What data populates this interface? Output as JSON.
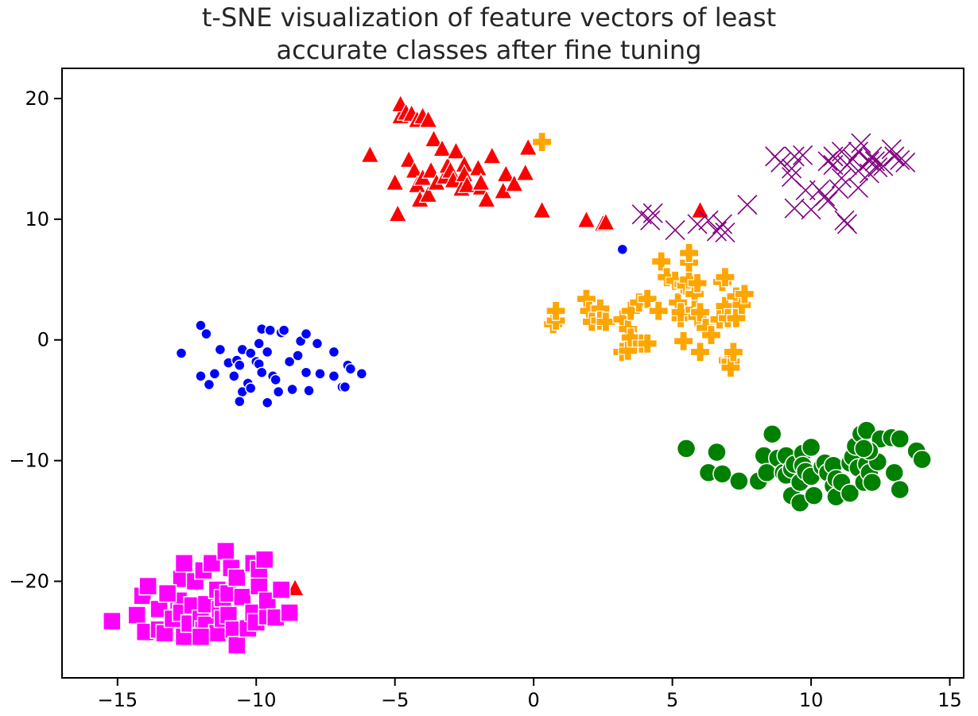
{
  "chart_data": {
    "type": "scatter",
    "title_lines": [
      "t-SNE visualization of feature vectors of least",
      "accurate classes after fine tuning"
    ],
    "xlabel": "",
    "ylabel": "",
    "xlim": [
      -17,
      15.5
    ],
    "ylim": [
      -28,
      22.5
    ],
    "xticks": [
      -15,
      -10,
      -5,
      0,
      5,
      10,
      15
    ],
    "yticks": [
      -20,
      -10,
      0,
      10,
      20
    ],
    "xtick_labels": [
      "−15",
      "−10",
      "−5",
      "0",
      "5",
      "10",
      "15"
    ],
    "ytick_labels": [
      "−20",
      "−10",
      "0",
      "10",
      "20"
    ],
    "grid": false,
    "series": [
      {
        "name": "class-circle-small",
        "marker": "circle-small",
        "color": "#0000ff",
        "points": [
          [
            -12.7,
            -1.1
          ],
          [
            -12.0,
            1.2
          ],
          [
            -11.8,
            0.5
          ],
          [
            -11.5,
            -2.8
          ],
          [
            -12.0,
            -3.0
          ],
          [
            -11.7,
            -3.7
          ],
          [
            -11.3,
            -0.8
          ],
          [
            -11.0,
            -1.9
          ],
          [
            -10.8,
            -3.0
          ],
          [
            -10.7,
            -1.7
          ],
          [
            -10.6,
            -2.1
          ],
          [
            -10.5,
            -4.3
          ],
          [
            -10.6,
            -5.1
          ],
          [
            -10.5,
            -0.8
          ],
          [
            -10.3,
            -3.6
          ],
          [
            -10.2,
            -4.0
          ],
          [
            -10.2,
            -1.1
          ],
          [
            -10.0,
            -1.8
          ],
          [
            -9.9,
            -2.0
          ],
          [
            -9.9,
            -0.3
          ],
          [
            -9.8,
            -2.7
          ],
          [
            -9.6,
            -1.0
          ],
          [
            -9.8,
            0.9
          ],
          [
            -9.5,
            0.8
          ],
          [
            -9.4,
            -3.0
          ],
          [
            -9.3,
            -3.3
          ],
          [
            -9.6,
            -5.2
          ],
          [
            -9.2,
            -4.3
          ],
          [
            -9.1,
            0.6
          ],
          [
            -9.0,
            0.8
          ],
          [
            -8.8,
            -1.8
          ],
          [
            -8.7,
            -4.1
          ],
          [
            -8.5,
            -1.3
          ],
          [
            -8.4,
            -0.1
          ],
          [
            -8.2,
            0.5
          ],
          [
            -8.2,
            -2.7
          ],
          [
            -8.1,
            -4.2
          ],
          [
            -7.8,
            -0.3
          ],
          [
            -7.7,
            -2.8
          ],
          [
            -7.2,
            -1.0
          ],
          [
            -7.2,
            -3.0
          ],
          [
            -6.9,
            -3.9
          ],
          [
            -6.8,
            -3.9
          ],
          [
            -6.7,
            -2.1
          ],
          [
            -6.6,
            -2.4
          ],
          [
            -6.2,
            -2.8
          ],
          [
            3.2,
            7.5
          ]
        ]
      },
      {
        "name": "class-triangle",
        "marker": "triangle",
        "color": "#ff0000",
        "points": [
          [
            -5.9,
            15.3
          ],
          [
            -5.0,
            13.0
          ],
          [
            -4.9,
            10.4
          ],
          [
            -4.8,
            18.5
          ],
          [
            -4.8,
            19.5
          ],
          [
            -4.6,
            18.8
          ],
          [
            -4.5,
            14.9
          ],
          [
            -4.4,
            18.7
          ],
          [
            -4.3,
            14.0
          ],
          [
            -4.2,
            12.8
          ],
          [
            -4.2,
            18.2
          ],
          [
            -4.1,
            11.6
          ],
          [
            -4.0,
            18.5
          ],
          [
            -4.0,
            13.4
          ],
          [
            -3.8,
            18.2
          ],
          [
            -3.8,
            12.0
          ],
          [
            -3.7,
            14.0
          ],
          [
            -3.6,
            16.6
          ],
          [
            -3.5,
            13.0
          ],
          [
            -3.3,
            15.8
          ],
          [
            -3.2,
            13.5
          ],
          [
            -3.1,
            14.4
          ],
          [
            -3.0,
            14.0
          ],
          [
            -2.9,
            13.2
          ],
          [
            -2.8,
            15.6
          ],
          [
            -2.6,
            12.5
          ],
          [
            -2.5,
            14.5
          ],
          [
            -2.5,
            13.7
          ],
          [
            -2.4,
            12.8
          ],
          [
            -2.0,
            14.2
          ],
          [
            -1.9,
            12.6
          ],
          [
            -1.9,
            13.0
          ],
          [
            -1.7,
            11.6
          ],
          [
            -1.5,
            15.2
          ],
          [
            -1.1,
            12.3
          ],
          [
            -1.0,
            13.7
          ],
          [
            -0.7,
            12.9
          ],
          [
            -0.3,
            13.8
          ],
          [
            -0.2,
            15.9
          ],
          [
            0.3,
            10.7
          ],
          [
            1.9,
            9.9
          ],
          [
            2.5,
            9.6
          ],
          [
            2.6,
            9.7
          ],
          [
            6.0,
            10.7
          ],
          [
            -8.6,
            -20.6
          ]
        ]
      },
      {
        "name": "class-cross",
        "marker": "cross",
        "color": "#800080",
        "points": [
          [
            3.9,
            10.4
          ],
          [
            4.2,
            9.9
          ],
          [
            4.3,
            10.5
          ],
          [
            5.1,
            9.1
          ],
          [
            5.9,
            9.6
          ],
          [
            6.3,
            9.9
          ],
          [
            6.6,
            9.0
          ],
          [
            6.9,
            8.9
          ],
          [
            6.8,
            9.6
          ],
          [
            7.7,
            11.2
          ],
          [
            8.7,
            15.2
          ],
          [
            8.9,
            14.7
          ],
          [
            9.3,
            14.2
          ],
          [
            9.3,
            13.5
          ],
          [
            9.4,
            15.2
          ],
          [
            9.7,
            15.3
          ],
          [
            9.8,
            12.4
          ],
          [
            9.4,
            10.9
          ],
          [
            10.0,
            10.8
          ],
          [
            10.3,
            12.4
          ],
          [
            10.5,
            11.9
          ],
          [
            10.6,
            11.5
          ],
          [
            10.8,
            15.2
          ],
          [
            10.8,
            14.5
          ],
          [
            11.0,
            12.5
          ],
          [
            11.1,
            15.6
          ],
          [
            11.1,
            13.4
          ],
          [
            11.2,
            9.9
          ],
          [
            11.3,
            9.6
          ],
          [
            11.3,
            14.5
          ],
          [
            11.5,
            15.0
          ],
          [
            11.7,
            15.6
          ],
          [
            11.7,
            14.0
          ],
          [
            11.7,
            12.6
          ],
          [
            11.8,
            16.3
          ],
          [
            12.1,
            14.8
          ],
          [
            12.1,
            13.8
          ],
          [
            12.3,
            14.8
          ],
          [
            12.4,
            14.3
          ],
          [
            12.6,
            14.4
          ],
          [
            12.9,
            15.8
          ],
          [
            13.0,
            15.2
          ],
          [
            13.2,
            14.9
          ],
          [
            13.4,
            14.7
          ],
          [
            12.2,
            15.2
          ],
          [
            10.6,
            14.8
          ]
        ]
      },
      {
        "name": "class-plus",
        "marker": "plus",
        "color": "#ffa500",
        "points": [
          [
            0.3,
            16.4
          ],
          [
            0.7,
            1.3
          ],
          [
            0.8,
            1.6
          ],
          [
            0.8,
            2.4
          ],
          [
            1.9,
            3.4
          ],
          [
            2.0,
            2.4
          ],
          [
            2.1,
            1.5
          ],
          [
            2.4,
            2.6
          ],
          [
            2.4,
            1.6
          ],
          [
            2.6,
            1.5
          ],
          [
            3.2,
            1.7
          ],
          [
            3.2,
            -1.0
          ],
          [
            3.4,
            0.9
          ],
          [
            3.4,
            -0.9
          ],
          [
            3.5,
            0.2
          ],
          [
            3.5,
            2.4
          ],
          [
            3.8,
            3.1
          ],
          [
            3.9,
            -0.3
          ],
          [
            4.1,
            -0.3
          ],
          [
            4.1,
            3.4
          ],
          [
            4.5,
            2.4
          ],
          [
            4.6,
            6.5
          ],
          [
            4.8,
            5.2
          ],
          [
            5.1,
            4.9
          ],
          [
            5.2,
            3.1
          ],
          [
            5.3,
            1.8
          ],
          [
            5.3,
            2.3
          ],
          [
            5.4,
            4.6
          ],
          [
            5.4,
            -0.1
          ],
          [
            5.5,
            4.5
          ],
          [
            5.6,
            5.0
          ],
          [
            5.6,
            6.4
          ],
          [
            5.6,
            7.2
          ],
          [
            5.8,
            3.8
          ],
          [
            5.8,
            2.5
          ],
          [
            5.9,
            4.7
          ],
          [
            5.9,
            1.9
          ],
          [
            6.0,
            2.3
          ],
          [
            6.0,
            -1.0
          ],
          [
            6.2,
            1.0
          ],
          [
            6.4,
            0.4
          ],
          [
            6.7,
            1.7
          ],
          [
            6.8,
            4.8
          ],
          [
            6.9,
            5.2
          ],
          [
            6.9,
            2.8
          ],
          [
            7.0,
            1.8
          ],
          [
            7.0,
            -1.7
          ],
          [
            7.1,
            -1.8
          ],
          [
            7.1,
            -2.3
          ],
          [
            7.2,
            -1.0
          ],
          [
            7.3,
            1.8
          ],
          [
            7.3,
            3.6
          ],
          [
            7.5,
            2.9
          ],
          [
            7.6,
            3.8
          ]
        ]
      },
      {
        "name": "class-circle-large",
        "marker": "circle-large",
        "color": "#008000",
        "points": [
          [
            5.5,
            -9.0
          ],
          [
            6.3,
            -11.0
          ],
          [
            6.6,
            -9.3
          ],
          [
            6.8,
            -11.1
          ],
          [
            7.4,
            -11.7
          ],
          [
            8.1,
            -11.7
          ],
          [
            8.3,
            -9.6
          ],
          [
            8.4,
            -11.0
          ],
          [
            8.6,
            -7.8
          ],
          [
            8.8,
            -9.8
          ],
          [
            9.0,
            -11.0
          ],
          [
            9.1,
            -9.6
          ],
          [
            9.1,
            -11.2
          ],
          [
            9.3,
            -10.7
          ],
          [
            9.3,
            -12.9
          ],
          [
            9.4,
            -10.3
          ],
          [
            9.6,
            -13.5
          ],
          [
            9.6,
            -11.8
          ],
          [
            9.7,
            -9.4
          ],
          [
            9.7,
            -10.4
          ],
          [
            9.8,
            -10.9
          ],
          [
            10.0,
            -8.9
          ],
          [
            10.0,
            -11.3
          ],
          [
            10.1,
            -12.9
          ],
          [
            10.4,
            -10.5
          ],
          [
            10.5,
            -10.2
          ],
          [
            10.6,
            -11.0
          ],
          [
            10.8,
            -12.1
          ],
          [
            10.8,
            -10.4
          ],
          [
            10.9,
            -13.0
          ],
          [
            10.9,
            -11.5
          ],
          [
            11.1,
            -11.8
          ],
          [
            11.4,
            -10.2
          ],
          [
            11.4,
            -12.7
          ],
          [
            11.5,
            -9.7
          ],
          [
            11.6,
            -8.8
          ],
          [
            11.7,
            -10.6
          ],
          [
            11.8,
            -7.8
          ],
          [
            11.9,
            -11.8
          ],
          [
            12.0,
            -10.3
          ],
          [
            12.0,
            -7.5
          ],
          [
            12.1,
            -11.0
          ],
          [
            12.2,
            -11.8
          ],
          [
            12.4,
            -10.1
          ],
          [
            12.5,
            -8.2
          ],
          [
            12.9,
            -8.1
          ],
          [
            13.0,
            -11.0
          ],
          [
            13.2,
            -8.2
          ],
          [
            13.2,
            -12.4
          ],
          [
            13.8,
            -9.2
          ],
          [
            14.0,
            -9.9
          ],
          [
            12.1,
            -9.2
          ],
          [
            11.9,
            -9.0
          ]
        ]
      },
      {
        "name": "class-square",
        "marker": "square",
        "color": "#ff00ff",
        "points": [
          [
            -15.2,
            -23.3
          ],
          [
            -14.3,
            -22.8
          ],
          [
            -14.1,
            -21.2
          ],
          [
            -14.0,
            -24.2
          ],
          [
            -13.9,
            -20.4
          ],
          [
            -13.5,
            -24.0
          ],
          [
            -13.5,
            -22.3
          ],
          [
            -13.3,
            -24.3
          ],
          [
            -13.0,
            -23.1
          ],
          [
            -12.8,
            -21.6
          ],
          [
            -12.7,
            -19.8
          ],
          [
            -12.7,
            -22.6
          ],
          [
            -12.6,
            -24.6
          ],
          [
            -12.6,
            -18.5
          ],
          [
            -12.4,
            -23.5
          ],
          [
            -12.3,
            -22.0
          ],
          [
            -12.2,
            -20.0
          ],
          [
            -12.0,
            -23.1
          ],
          [
            -11.9,
            -19.1
          ],
          [
            -11.9,
            -24.0
          ],
          [
            -11.8,
            -21.9
          ],
          [
            -11.8,
            -23.6
          ],
          [
            -11.6,
            -18.5
          ],
          [
            -11.4,
            -20.7
          ],
          [
            -11.4,
            -24.3
          ],
          [
            -11.3,
            -22.3
          ],
          [
            -11.2,
            -23.1
          ],
          [
            -11.2,
            -21.4
          ],
          [
            -11.1,
            -17.5
          ],
          [
            -11.0,
            -21.0
          ],
          [
            -11.0,
            -22.8
          ],
          [
            -10.9,
            -18.9
          ],
          [
            -10.8,
            -24.0
          ],
          [
            -10.7,
            -25.3
          ],
          [
            -10.7,
            -19.7
          ],
          [
            -10.5,
            -21.3
          ],
          [
            -10.3,
            -23.9
          ],
          [
            -10.1,
            -22.6
          ],
          [
            -10.1,
            -18.5
          ],
          [
            -10.0,
            -23.4
          ],
          [
            -9.9,
            -20.4
          ],
          [
            -9.9,
            -19.0
          ],
          [
            -9.6,
            -22.9
          ],
          [
            -9.6,
            -21.6
          ],
          [
            -9.3,
            -23.0
          ],
          [
            -9.1,
            -20.7
          ],
          [
            -8.8,
            -22.6
          ],
          [
            -9.7,
            -18.2
          ],
          [
            -12.0,
            -24.6
          ],
          [
            -13.2,
            -21.0
          ]
        ]
      }
    ]
  }
}
